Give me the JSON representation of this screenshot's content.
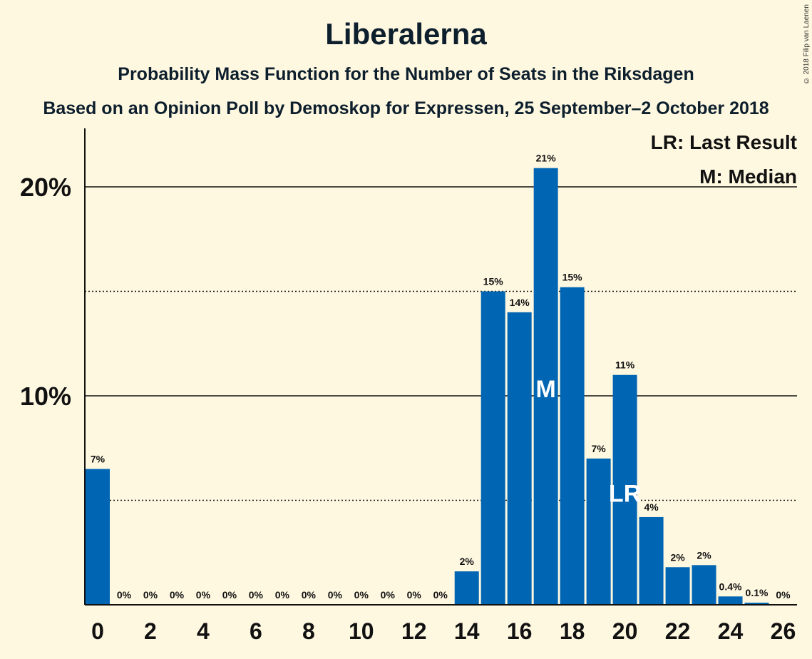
{
  "title": "Liberalerna",
  "subtitle": "Probability Mass Function for the Number of Seats in the Riksdagen",
  "subtitle2": "Based on an Opinion Poll by Demoskop for Expressen, 25 September–2 October 2018",
  "copyright": "© 2018 Filip van Laenen",
  "legend": {
    "last_result": "LR: Last Result",
    "median": "M: Median"
  },
  "colors": {
    "bar": "#0066B3",
    "background": "#FFF8E1"
  },
  "chart_data": {
    "type": "bar",
    "x": [
      0,
      1,
      2,
      3,
      4,
      5,
      6,
      7,
      8,
      9,
      10,
      11,
      12,
      13,
      14,
      15,
      16,
      17,
      18,
      19,
      20,
      21,
      22,
      23,
      24,
      25,
      26
    ],
    "values": [
      6.5,
      0,
      0,
      0,
      0,
      0,
      0,
      0,
      0,
      0,
      0,
      0,
      0,
      0,
      1.6,
      15,
      14,
      20.9,
      15.2,
      7,
      11,
      4.2,
      1.8,
      1.9,
      0.4,
      0.1,
      0
    ],
    "bar_labels": [
      "7%",
      "0%",
      "0%",
      "0%",
      "0%",
      "0%",
      "0%",
      "0%",
      "0%",
      "0%",
      "0%",
      "0%",
      "0%",
      "0%",
      "2%",
      "15%",
      "14%",
      "21%",
      "15%",
      "7%",
      "11%",
      "4%",
      "2%",
      "2%",
      "0.4%",
      "0.1%",
      "0%"
    ],
    "x_tick_labels": [
      "0",
      "2",
      "4",
      "6",
      "8",
      "10",
      "12",
      "14",
      "16",
      "18",
      "20",
      "22",
      "24",
      "26"
    ],
    "x_ticks": [
      0,
      2,
      4,
      6,
      8,
      10,
      12,
      14,
      16,
      18,
      20,
      22,
      24,
      26
    ],
    "y_tick_labels": [
      "10%",
      "20%"
    ],
    "y_ticks": [
      10,
      20
    ],
    "minor_gridlines": [
      5,
      15
    ],
    "ylim": [
      0,
      22.8
    ],
    "xlim": [
      0,
      26.5
    ],
    "median": 17,
    "median_label": "M",
    "last_result": 20,
    "last_result_label": "LR"
  }
}
